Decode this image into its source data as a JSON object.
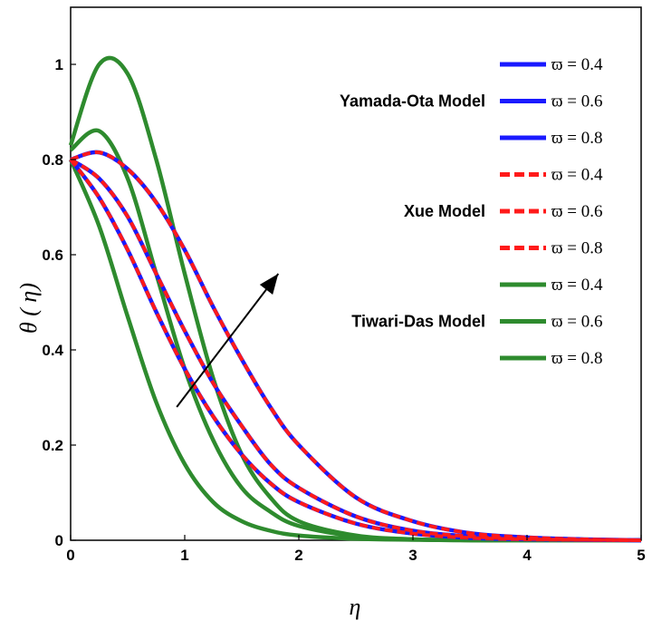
{
  "chart_data": {
    "type": "line",
    "title": "",
    "xlabel": "η",
    "ylabel": "θ ( η)",
    "xlim": [
      0,
      5
    ],
    "ylim": [
      0,
      1.12
    ],
    "xticks": [
      "0",
      "1",
      "2",
      "3",
      "4",
      "5"
    ],
    "yticks": [
      "0",
      "0.2",
      "0.4",
      "0.6",
      "0.8",
      "1"
    ],
    "xtick_values": [
      0,
      1,
      2,
      3,
      4,
      5
    ],
    "ytick_values": [
      0,
      0.2,
      0.4,
      0.6,
      0.8,
      1
    ],
    "x": [
      0,
      0.25,
      0.5,
      0.75,
      1,
      1.25,
      1.5,
      1.75,
      2,
      2.5,
      3,
      3.5,
      4,
      4.5,
      5
    ],
    "colors": {
      "yamada": "#1a1aff",
      "xue": "#ff1a1a",
      "tiwari": "#2e8b2e",
      "arrow": "#000000"
    },
    "groups": [
      {
        "label": "Yamada-Ota Model",
        "color": "#1a1aff",
        "style": "solid"
      },
      {
        "label": "Xue Model",
        "color": "#ff1a1a",
        "style": "dashed"
      },
      {
        "label": "Tiwari-Das Model",
        "color": "#2e8b2e",
        "style": "solid"
      }
    ],
    "series": [
      {
        "name": "Yamada-Ota Model ϖ = 0.4",
        "group": 0,
        "values": [
          0.8,
          0.72,
          0.61,
          0.48,
          0.36,
          0.26,
          0.18,
          0.12,
          0.08,
          0.035,
          0.014,
          0.005,
          0.002,
          0.001,
          0.0
        ]
      },
      {
        "name": "Yamada-Ota Model ϖ = 0.6",
        "group": 0,
        "values": [
          0.8,
          0.76,
          0.68,
          0.56,
          0.44,
          0.33,
          0.24,
          0.16,
          0.11,
          0.05,
          0.02,
          0.008,
          0.003,
          0.001,
          0.0
        ]
      },
      {
        "name": "Yamada-Ota Model ϖ = 0.8",
        "group": 0,
        "values": [
          0.8,
          0.815,
          0.78,
          0.71,
          0.61,
          0.49,
          0.38,
          0.28,
          0.2,
          0.09,
          0.04,
          0.015,
          0.006,
          0.002,
          0.0
        ]
      },
      {
        "name": "Xue Model ϖ = 0.4",
        "group": 1,
        "values": [
          0.8,
          0.72,
          0.61,
          0.48,
          0.36,
          0.26,
          0.18,
          0.12,
          0.08,
          0.035,
          0.014,
          0.005,
          0.002,
          0.001,
          0.0
        ]
      },
      {
        "name": "Xue Model ϖ = 0.6",
        "group": 1,
        "values": [
          0.8,
          0.76,
          0.68,
          0.56,
          0.44,
          0.33,
          0.24,
          0.16,
          0.11,
          0.05,
          0.02,
          0.008,
          0.003,
          0.001,
          0.0
        ]
      },
      {
        "name": "Xue Model ϖ = 0.8",
        "group": 1,
        "values": [
          0.8,
          0.815,
          0.78,
          0.71,
          0.61,
          0.49,
          0.38,
          0.28,
          0.2,
          0.09,
          0.04,
          0.015,
          0.006,
          0.002,
          0.0
        ]
      },
      {
        "name": "Tiwari-Das Model ϖ = 0.4",
        "group": 2,
        "values": [
          0.8,
          0.66,
          0.47,
          0.29,
          0.16,
          0.08,
          0.04,
          0.02,
          0.01,
          0.003,
          0.001,
          0.0,
          0.0,
          0.0,
          0.0
        ]
      },
      {
        "name": "Tiwari-Das Model ϖ = 0.6",
        "group": 2,
        "values": [
          0.82,
          0.86,
          0.76,
          0.56,
          0.36,
          0.21,
          0.11,
          0.06,
          0.03,
          0.008,
          0.002,
          0.0,
          0.0,
          0.0,
          0.0
        ]
      },
      {
        "name": "Tiwari-Das Model ϖ = 0.8",
        "group": 2,
        "values": [
          0.83,
          1.0,
          0.98,
          0.8,
          0.56,
          0.34,
          0.18,
          0.09,
          0.04,
          0.01,
          0.002,
          0.0,
          0.0,
          0.0,
          0.0
        ]
      }
    ],
    "legend": [
      {
        "text": "ϖ = 0.4",
        "group": 0
      },
      {
        "text": "ϖ = 0.6",
        "group": 0
      },
      {
        "text": "ϖ = 0.8",
        "group": 0
      },
      {
        "text": "ϖ = 0.4",
        "group": 1
      },
      {
        "text": "ϖ = 0.6",
        "group": 1
      },
      {
        "text": "ϖ = 0.8",
        "group": 1
      },
      {
        "text": "ϖ = 0.4",
        "group": 2
      },
      {
        "text": "ϖ = 0.6",
        "group": 2
      },
      {
        "text": "ϖ = 0.8",
        "group": 2
      }
    ],
    "arrow": {
      "from": [
        0.93,
        0.28
      ],
      "to": [
        1.82,
        0.56
      ],
      "meaning": "increasing ϖ"
    }
  }
}
